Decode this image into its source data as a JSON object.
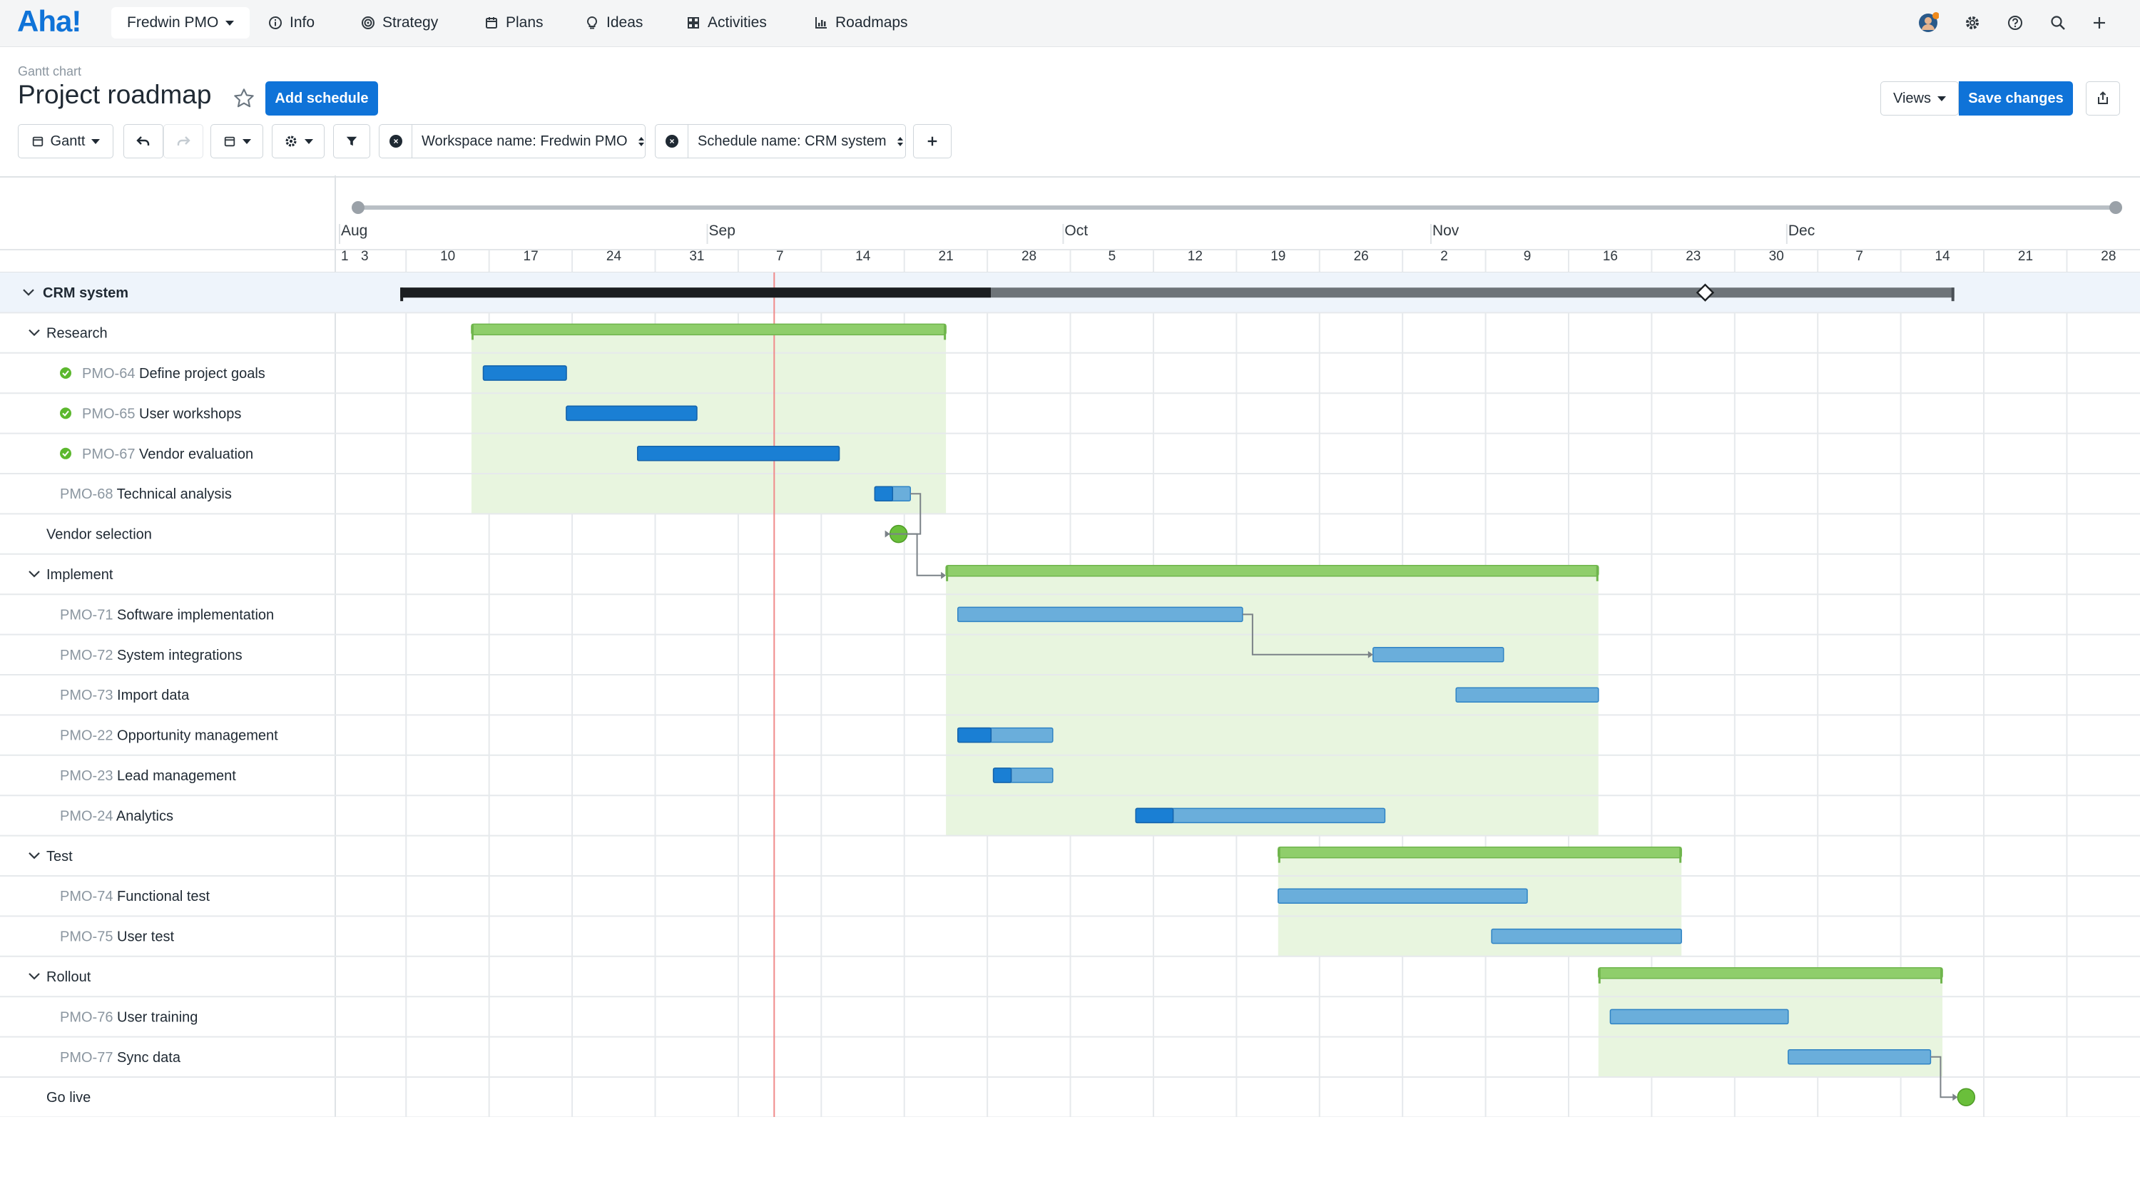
{
  "app": {
    "logo": "Aha!"
  },
  "nav": {
    "workspace": "Fredwin PMO",
    "items": [
      {
        "label": "Info",
        "icon": "info-icon"
      },
      {
        "label": "Strategy",
        "icon": "target-icon"
      },
      {
        "label": "Plans",
        "icon": "calendar-icon"
      },
      {
        "label": "Ideas",
        "icon": "lightbulb-icon"
      },
      {
        "label": "Activities",
        "icon": "grid-icon"
      },
      {
        "label": "Roadmaps",
        "icon": "chart-icon"
      }
    ],
    "right_icons": [
      "avatar",
      "gear-icon",
      "help-icon",
      "search-icon",
      "plus-icon"
    ]
  },
  "header": {
    "subtitle": "Gantt chart",
    "title": "Project roadmap",
    "add_schedule": "Add schedule",
    "views": "Views",
    "save_changes": "Save changes"
  },
  "toolbar": {
    "view_select": "Gantt",
    "filter_workspace": "Workspace name: Fredwin PMO",
    "filter_schedule": "Schedule name: CRM system"
  },
  "timeline": {
    "months": [
      "Aug",
      "Sep",
      "Oct",
      "Nov",
      "Dec"
    ],
    "weeks": [
      "1",
      "3",
      "10",
      "17",
      "24",
      "31",
      "7",
      "14",
      "21",
      "28",
      "5",
      "12",
      "19",
      "26",
      "2",
      "9",
      "16",
      "23",
      "30",
      "7",
      "14",
      "21",
      "28"
    ],
    "today_label": "Sep 7"
  },
  "colors": {
    "accent": "#0f73d8",
    "bar_done": "#1a7fd4",
    "bar_todo": "#6aaedb",
    "group_bar": "#8fce6b",
    "group_area": "#e8f5df",
    "milestone": "#6abf3b",
    "today_line": "#f08a8a"
  },
  "rows": [
    {
      "type": "schedule",
      "label": "CRM system",
      "start": "2024-08-06",
      "end": "2024-12-15",
      "progress": 0.38,
      "milestone": "2024-11-24"
    },
    {
      "type": "group",
      "label": "Research",
      "start": "2024-08-12",
      "end": "2024-09-21"
    },
    {
      "type": "task",
      "id": "PMO-64",
      "label": "Define project goals",
      "done": true,
      "start": "2024-08-13",
      "end": "2024-08-20",
      "progress": 1
    },
    {
      "type": "task",
      "id": "PMO-65",
      "label": "User workshops",
      "done": true,
      "start": "2024-08-20",
      "end": "2024-08-31",
      "progress": 1
    },
    {
      "type": "task",
      "id": "PMO-67",
      "label": "Vendor evaluation",
      "done": true,
      "start": "2024-08-26",
      "end": "2024-09-12",
      "progress": 1
    },
    {
      "type": "task",
      "id": "PMO-68",
      "label": "Technical analysis",
      "done": false,
      "start": "2024-09-15",
      "end": "2024-09-18",
      "progress": 0.5
    },
    {
      "type": "milestone",
      "label": "Vendor selection",
      "date": "2024-09-17"
    },
    {
      "type": "group",
      "label": "Implement",
      "start": "2024-09-21",
      "end": "2024-11-15"
    },
    {
      "type": "task",
      "id": "PMO-71",
      "label": "Software implementation",
      "done": false,
      "start": "2024-09-22",
      "end": "2024-10-16",
      "progress": 0
    },
    {
      "type": "task",
      "id": "PMO-72",
      "label": "System integrations",
      "done": false,
      "start": "2024-10-27",
      "end": "2024-11-07",
      "progress": 0
    },
    {
      "type": "task",
      "id": "PMO-73",
      "label": "Import data",
      "done": false,
      "start": "2024-11-03",
      "end": "2024-11-15",
      "progress": 0
    },
    {
      "type": "task",
      "id": "PMO-22",
      "label": "Opportunity management",
      "done": false,
      "start": "2024-09-22",
      "end": "2024-09-30",
      "progress": 0.35
    },
    {
      "type": "task",
      "id": "PMO-23",
      "label": "Lead management",
      "done": false,
      "start": "2024-09-25",
      "end": "2024-09-30",
      "progress": 0.3
    },
    {
      "type": "task",
      "id": "PMO-24",
      "label": "Analytics",
      "done": false,
      "start": "2024-10-07",
      "end": "2024-10-28",
      "progress": 0.15
    },
    {
      "type": "group",
      "label": "Test",
      "start": "2024-10-19",
      "end": "2024-11-22"
    },
    {
      "type": "task",
      "id": "PMO-74",
      "label": "Functional test",
      "done": false,
      "start": "2024-10-19",
      "end": "2024-11-09",
      "progress": 0
    },
    {
      "type": "task",
      "id": "PMO-75",
      "label": "User test",
      "done": false,
      "start": "2024-11-06",
      "end": "2024-11-22",
      "progress": 0
    },
    {
      "type": "group",
      "label": "Rollout",
      "start": "2024-11-15",
      "end": "2024-12-14"
    },
    {
      "type": "task",
      "id": "PMO-76",
      "label": "User training",
      "done": false,
      "start": "2024-11-16",
      "end": "2024-12-01",
      "progress": 0
    },
    {
      "type": "task",
      "id": "PMO-77",
      "label": "Sync data",
      "done": false,
      "start": "2024-12-01",
      "end": "2024-12-13",
      "progress": 0
    },
    {
      "type": "milestone",
      "label": "Go live",
      "date": "2024-12-16"
    }
  ],
  "dependencies": [
    {
      "from": "PMO-68",
      "to": "Vendor selection"
    },
    {
      "from": "Vendor selection",
      "to": "Implement"
    },
    {
      "from": "PMO-71",
      "to": "PMO-72"
    },
    {
      "from": "PMO-77",
      "to": "Go live"
    }
  ]
}
